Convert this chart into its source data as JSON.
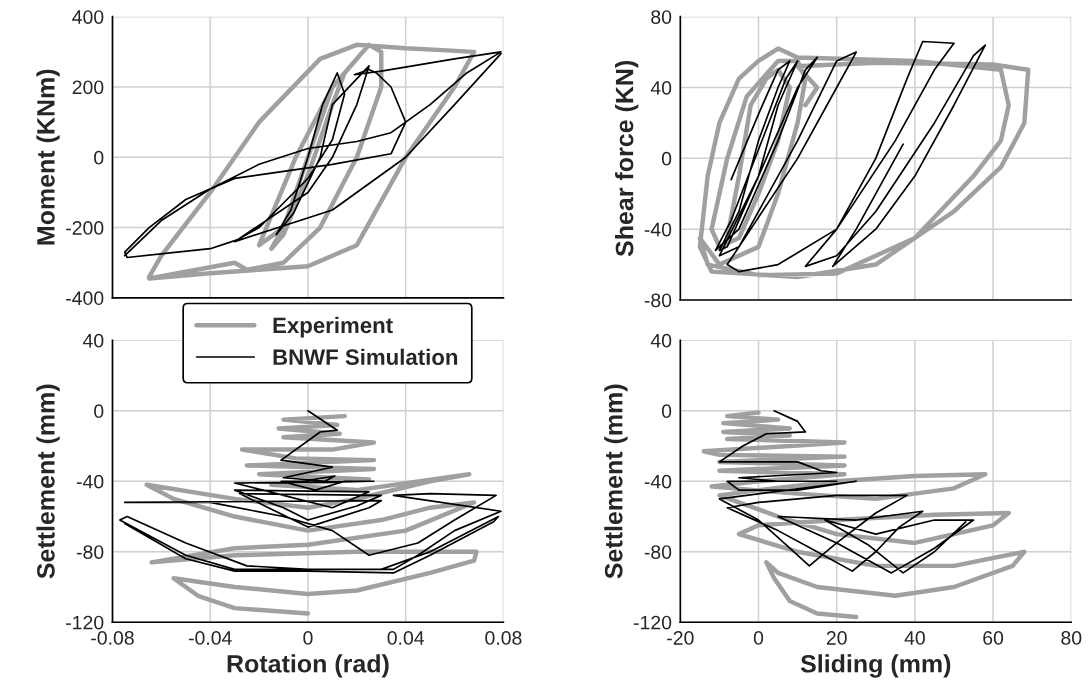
{
  "chart_data": [
    {
      "type": "line",
      "ylabel": "Moment (KNm)",
      "xlim": [
        -0.08,
        0.08
      ],
      "xticks": [
        -0.08,
        -0.04,
        0,
        0.04,
        0.08
      ],
      "ylim": [
        -400,
        400
      ],
      "yticks": [
        -400,
        -200,
        0,
        200,
        400
      ],
      "grid": true,
      "tick_labels": "y",
      "series": [
        {
          "color": "#a0a0a0",
          "x": [
            -0.01,
            0,
            0.01,
            0.015,
            0.01,
            0,
            -0.01,
            -0.015,
            -0.01,
            -0.02,
            -0.005,
            0.01,
            0.025,
            0.03,
            0.03,
            0.02,
            0.005,
            -0.01,
            -0.025,
            -0.03,
            -0.065,
            -0.04,
            -0.02,
            0,
            0.02,
            0.04,
            0.06,
            0.068,
            0.055,
            0.04,
            0.02,
            0.005,
            -0.02,
            -0.04,
            -0.06,
            -0.065
          ],
          "values": [
            -200,
            0,
            200,
            240,
            150,
            -50,
            -220,
            -260,
            -200,
            -250,
            0,
            200,
            320,
            300,
            200,
            0,
            -200,
            -300,
            -320,
            -300,
            -345,
            -330,
            -320,
            -310,
            -250,
            0,
            200,
            300,
            305,
            310,
            320,
            280,
            100,
            -100,
            -280,
            -340
          ]
        },
        {
          "color": "#000000",
          "x": [
            -0.075,
            -0.06,
            -0.04,
            -0.02,
            0,
            0.02,
            0.034,
            0.05,
            0.065,
            0.079,
            0.06,
            0.03,
            0.019,
            0.025,
            0.028,
            0.034,
            0.04,
            0.034,
            0.01,
            -0.01,
            -0.03,
            -0.05,
            -0.065,
            -0.075,
            -0.074,
            -0.04,
            -0.029,
            -0.02,
            -0.01,
            0,
            0.01,
            0.015,
            0.012,
            0.006,
            0,
            -0.007,
            -0.013,
            -0.006,
            0.005,
            0.01,
            0.025,
            0.02,
            0.01,
            0,
            -0.03,
            0.01,
            0.04,
            0.06,
            0.079
          ],
          "values": [
            -280,
            -180,
            -90,
            -20,
            25,
            45,
            70,
            150,
            240,
            300,
            280,
            245,
            235,
            250,
            240,
            200,
            100,
            10,
            -20,
            -40,
            -60,
            -120,
            -200,
            -270,
            -285,
            -260,
            -235,
            -200,
            -130,
            -60,
            50,
            180,
            240,
            150,
            0,
            -150,
            -220,
            -160,
            0,
            150,
            260,
            150,
            0,
            -100,
            -240,
            -150,
            0,
            150,
            295
          ]
        }
      ]
    },
    {
      "type": "line",
      "ylabel": "Shear force (KN)",
      "xlim": [
        -20,
        80
      ],
      "xticks": [
        -20,
        0,
        20,
        40,
        60,
        80
      ],
      "ylim": [
        -80,
        80
      ],
      "yticks": [
        -80,
        -40,
        0,
        40,
        80
      ],
      "grid": true,
      "tick_labels": "y",
      "series": [
        {
          "color": "#a0a0a0",
          "x": [
            -8,
            -5,
            -2,
            2,
            5,
            8,
            5,
            0,
            -5,
            -10,
            -12,
            -8,
            -3,
            5,
            10,
            12,
            10,
            5,
            0,
            -10,
            -15,
            -13,
            0,
            20,
            40,
            55,
            62,
            64,
            62,
            40,
            10,
            5,
            0,
            -5,
            -10,
            -13,
            -15,
            -12,
            10,
            30,
            50,
            62,
            68,
            69,
            60,
            30,
            10,
            15,
            12
          ],
          "values": [
            -45,
            -10,
            30,
            45,
            50,
            40,
            10,
            -20,
            -45,
            -50,
            -40,
            0,
            35,
            55,
            55,
            45,
            20,
            -20,
            -50,
            -60,
            -45,
            -60,
            -66,
            -65,
            -45,
            -10,
            10,
            30,
            50,
            55,
            57,
            62,
            55,
            45,
            20,
            -10,
            -50,
            -64,
            -67,
            -60,
            -30,
            -5,
            20,
            50,
            53,
            54,
            52,
            40,
            30
          ]
        },
        {
          "color": "#000000",
          "x": [
            -7,
            0,
            5,
            8,
            5,
            0,
            -5,
            -10,
            -8,
            0,
            5,
            10,
            7,
            0,
            -7,
            -11,
            -5,
            5,
            12,
            15,
            10,
            0,
            -10,
            -5,
            10,
            20,
            25,
            20,
            10,
            -8,
            -5,
            5,
            20,
            35,
            45,
            50,
            42,
            38,
            30,
            20,
            12,
            20,
            30,
            45,
            55,
            58,
            50,
            40,
            30,
            19,
            25,
            37
          ],
          "values": [
            -12,
            25,
            50,
            55,
            40,
            10,
            -30,
            -52,
            -50,
            -10,
            30,
            55,
            45,
            5,
            -35,
            -52,
            -40,
            10,
            50,
            57,
            40,
            -10,
            -55,
            -50,
            10,
            55,
            60,
            40,
            0,
            -60,
            -64,
            -60,
            -40,
            10,
            50,
            65,
            66,
            45,
            0,
            -40,
            -61,
            -55,
            -30,
            20,
            58,
            64,
            30,
            -10,
            -40,
            -61,
            -40,
            8
          ]
        }
      ]
    },
    {
      "type": "line",
      "xlabel": "Rotation (rad)",
      "ylabel": "Settlement (mm)",
      "xlim": [
        -0.08,
        0.08
      ],
      "xticks": [
        -0.08,
        -0.04,
        0,
        0.04,
        0.08
      ],
      "ylim": [
        -120,
        40
      ],
      "yticks": [
        -120,
        -80,
        -40,
        0,
        40
      ],
      "grid": true,
      "legend": "top",
      "series": [
        {
          "name": "Experiment",
          "color": "#a0a0a0",
          "x": [
            0.015,
            -0.01,
            0.012,
            -0.012,
            0.013,
            -0.01,
            0.027,
            0.01,
            -0.027,
            -0.005,
            0.027,
            -0.025,
            0.027,
            -0.02,
            0.025,
            -0.015,
            0.02,
            0.066,
            0.05,
            0.02,
            0,
            -0.03,
            -0.066,
            -0.055,
            -0.03,
            0,
            0.03,
            0.05,
            0.068,
            0.04,
            0,
            -0.03,
            -0.064,
            -0.03,
            0.02,
            0.069,
            0.068,
            0.05,
            0.02,
            0,
            -0.03,
            -0.055,
            -0.045,
            -0.03,
            0
          ],
          "values": [
            -3,
            -5,
            -8,
            -10,
            -13,
            -15,
            -18,
            -22,
            -22,
            -27,
            -28,
            -31,
            -33,
            -36,
            -39,
            -42,
            -45,
            -36,
            -40,
            -50,
            -55,
            -50,
            -42,
            -50,
            -60,
            -68,
            -62,
            -55,
            -52,
            -68,
            -76,
            -78,
            -86,
            -82,
            -80,
            -80,
            -85,
            -92,
            -102,
            -104,
            -100,
            -95,
            -105,
            -112,
            -115
          ]
        },
        {
          "name": "BNWF Simulation",
          "color": "#000000",
          "x": [
            0,
            0.012,
            0.005,
            -0.011,
            0.01,
            -0.01,
            0.007,
            0.011,
            -0.002,
            -0.011,
            0.003,
            0.015,
            0.027,
            -0.03,
            -0.01,
            0.01,
            0.025,
            -0.03,
            -0.01,
            0,
            0.02,
            0.03,
            -0.028,
            0,
            0.025,
            0.03,
            -0.075,
            -0.04,
            -0.01,
            0.01,
            0.025,
            0.045,
            0.06,
            0.077,
            0.05,
            0.035,
            0.079,
            0.06,
            0.045,
            0.035,
            0,
            -0.03,
            -0.05,
            -0.077,
            -0.074,
            -0.05,
            -0.025,
            0,
            0.03,
            0.05,
            0.078,
            0.076,
            0.05,
            0.035,
            0,
            -0.03,
            -0.05,
            -0.075
          ],
          "values": [
            0,
            -11,
            -12,
            -28,
            -32,
            -38,
            -40,
            -37,
            -40,
            -40,
            -45,
            -40,
            -40,
            -41,
            -48,
            -55,
            -46,
            -45,
            -55,
            -62,
            -54,
            -48,
            -47,
            -66,
            -55,
            -51,
            -52,
            -52,
            -60,
            -68,
            -82,
            -75,
            -62,
            -48,
            -47,
            -48,
            -57,
            -68,
            -82,
            -90,
            -90,
            -90,
            -82,
            -62,
            -60,
            -75,
            -88,
            -90,
            -90,
            -80,
            -60,
            -63,
            -82,
            -92,
            -91,
            -91,
            -84,
            -64
          ]
        }
      ]
    },
    {
      "type": "line",
      "xlabel": "Sliding (mm)",
      "ylabel": "Settlement (mm)",
      "xlim": [
        -20,
        80
      ],
      "xticks": [
        -20,
        0,
        20,
        40,
        60,
        80
      ],
      "ylim": [
        -120,
        40
      ],
      "yticks": [
        -120,
        -80,
        -40,
        0,
        40
      ],
      "grid": true,
      "series": [
        {
          "color": "#a0a0a0",
          "x": [
            0,
            -8,
            5,
            -9,
            8,
            -9,
            8,
            -8,
            22,
            -14,
            -10,
            22,
            -10,
            22,
            -10,
            22,
            0,
            -12,
            10,
            30,
            50,
            58,
            40,
            20,
            0,
            -10,
            5,
            20,
            40,
            60,
            64,
            45,
            20,
            0,
            -5,
            10,
            30,
            50,
            68,
            65,
            50,
            35,
            15,
            5,
            2,
            4,
            8,
            15,
            25
          ],
          "values": [
            -1,
            -3,
            -5,
            -7,
            -10,
            -12,
            -14,
            -16,
            -18,
            -23,
            -25,
            -26,
            -29,
            -31,
            -34,
            -36,
            -40,
            -43,
            -47,
            -50,
            -44,
            -36,
            -37,
            -40,
            -45,
            -48,
            -60,
            -70,
            -75,
            -65,
            -58,
            -59,
            -62,
            -65,
            -70,
            -80,
            -88,
            -88,
            -80,
            -88,
            -100,
            -105,
            -100,
            -92,
            -86,
            -95,
            -108,
            -115,
            -117
          ]
        },
        {
          "color": "#000000",
          "x": [
            4,
            10,
            12,
            2,
            -4,
            -10,
            10,
            16,
            20,
            -5,
            5,
            15,
            20,
            -8,
            -5,
            10,
            25,
            -10,
            0,
            8,
            13,
            20,
            30,
            38,
            20,
            0,
            -8,
            5,
            15,
            24,
            30,
            36,
            42,
            25,
            5,
            20,
            34,
            45,
            55,
            45,
            30,
            17,
            28,
            37,
            45,
            53
          ],
          "values": [
            0,
            -6,
            -12,
            -13,
            -20,
            -29,
            -29,
            -34,
            -35,
            -38,
            -40,
            -40,
            -40,
            -40,
            -45,
            -45,
            -40,
            -50,
            -62,
            -78,
            -88,
            -75,
            -58,
            -48,
            -48,
            -52,
            -55,
            -68,
            -80,
            -91,
            -80,
            -66,
            -57,
            -62,
            -60,
            -75,
            -92,
            -78,
            -62,
            -62,
            -70,
            -62,
            -76,
            -92,
            -80,
            -63
          ]
        }
      ]
    }
  ]
}
